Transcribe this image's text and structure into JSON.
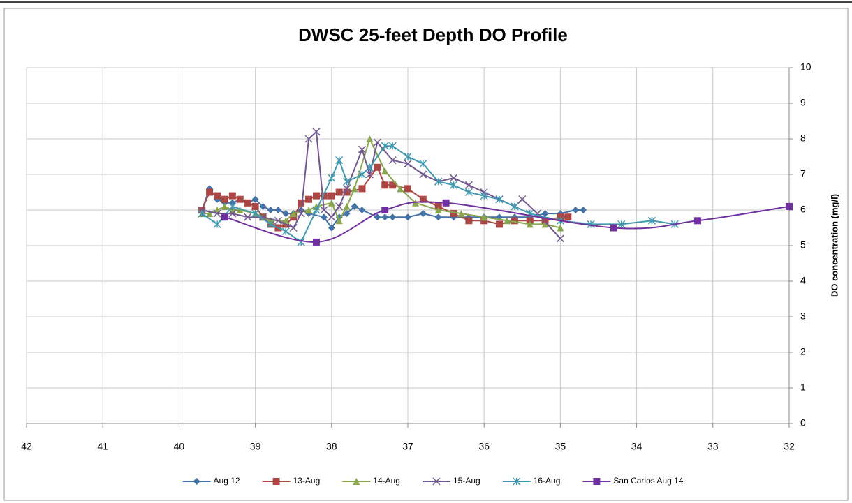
{
  "chart_data": {
    "type": "line",
    "title": "DWSC 25-feet Depth DO Profile",
    "y_label": "DO concentration (mg/l)",
    "xlim": [
      42,
      32
    ],
    "xticks": [
      42,
      41,
      40,
      39,
      38,
      37,
      36,
      35,
      34,
      33,
      32
    ],
    "ylim": [
      0,
      10
    ],
    "yticks": [
      0,
      1,
      2,
      3,
      4,
      5,
      6,
      7,
      8,
      9,
      10
    ],
    "grid": true,
    "y_axis_side": "right",
    "legend": "bottom",
    "series": [
      {
        "name": "Aug 12",
        "color": "#4572a7",
        "marker": "diamond",
        "smooth": false,
        "x": [
          39.7,
          39.6,
          39.5,
          39.4,
          39.3,
          39.2,
          39.1,
          39.0,
          38.9,
          38.8,
          38.7,
          38.6,
          38.5,
          38.4,
          38.3,
          38.1,
          38.0,
          37.9,
          37.8,
          37.7,
          37.6,
          37.4,
          37.3,
          37.2,
          37.0,
          36.8,
          36.6,
          36.4,
          36.2,
          36.0,
          35.8,
          35.6,
          35.4,
          35.2,
          35.0,
          34.8,
          34.7
        ],
        "values": [
          6.0,
          6.6,
          6.3,
          6.2,
          6.2,
          6.3,
          6.2,
          6.3,
          6.1,
          6.0,
          6.0,
          5.9,
          5.9,
          6.0,
          5.9,
          5.8,
          5.5,
          5.8,
          5.9,
          6.1,
          6.0,
          5.8,
          5.8,
          5.8,
          5.8,
          5.9,
          5.8,
          5.8,
          5.8,
          5.8,
          5.8,
          5.8,
          5.8,
          5.9,
          5.9,
          6.0,
          6.0
        ]
      },
      {
        "name": "13-Aug",
        "color": "#aa4643",
        "marker": "square",
        "smooth": false,
        "x": [
          39.7,
          39.6,
          39.5,
          39.4,
          39.3,
          39.2,
          39.1,
          39.0,
          38.9,
          38.8,
          38.7,
          38.6,
          38.5,
          38.4,
          38.3,
          38.2,
          38.1,
          38.0,
          37.9,
          37.8,
          37.6,
          37.4,
          37.3,
          37.2,
          37.0,
          36.8,
          36.6,
          36.4,
          36.2,
          36.0,
          35.8,
          35.6,
          35.4,
          35.2,
          35.0,
          34.9
        ],
        "values": [
          6.0,
          6.5,
          6.4,
          6.3,
          6.4,
          6.3,
          6.2,
          6.1,
          5.8,
          5.6,
          5.5,
          5.6,
          5.8,
          6.2,
          6.3,
          6.4,
          6.4,
          6.4,
          6.5,
          6.5,
          6.6,
          7.2,
          6.7,
          6.7,
          6.6,
          6.3,
          6.1,
          5.9,
          5.7,
          5.7,
          5.6,
          5.7,
          5.7,
          5.7,
          5.8,
          5.8
        ]
      },
      {
        "name": "14-Aug",
        "color": "#89a54e",
        "marker": "triangle",
        "smooth": false,
        "x": [
          39.7,
          39.6,
          39.5,
          39.4,
          39.3,
          39.2,
          39.0,
          38.9,
          38.8,
          38.6,
          38.5,
          38.3,
          38.2,
          38.0,
          37.9,
          37.8,
          37.7,
          37.5,
          37.3,
          37.1,
          36.9,
          36.6,
          36.3,
          36.0,
          35.7,
          35.4,
          35.2,
          35.0
        ],
        "values": [
          5.9,
          5.9,
          6.0,
          6.1,
          6.0,
          6.0,
          5.9,
          5.8,
          5.7,
          5.7,
          5.9,
          6.0,
          6.1,
          6.2,
          5.7,
          6.1,
          6.6,
          8.0,
          7.1,
          6.6,
          6.2,
          6.0,
          5.9,
          5.8,
          5.7,
          5.6,
          5.6,
          5.5
        ]
      },
      {
        "name": "15-Aug",
        "color": "#71588f",
        "marker": "x",
        "smooth": false,
        "x": [
          39.7,
          39.5,
          39.3,
          39.1,
          38.9,
          38.7,
          38.5,
          38.4,
          38.3,
          38.2,
          38.1,
          38.0,
          37.9,
          37.8,
          37.6,
          37.5,
          37.4,
          37.2,
          37.0,
          36.8,
          36.6,
          36.4,
          36.2,
          36.0,
          35.8,
          35.6,
          35.5,
          35.3,
          35.0
        ],
        "values": [
          6.0,
          5.9,
          5.9,
          5.8,
          5.8,
          5.7,
          5.5,
          5.9,
          8.0,
          8.2,
          6.0,
          5.8,
          6.1,
          6.6,
          7.7,
          7.0,
          7.9,
          7.4,
          7.3,
          7.0,
          6.8,
          6.9,
          6.7,
          6.5,
          6.3,
          6.1,
          6.3,
          5.9,
          5.2
        ]
      },
      {
        "name": "16-Aug",
        "color": "#4198af",
        "marker": "star",
        "smooth": false,
        "x": [
          39.7,
          39.5,
          39.3,
          39.0,
          38.8,
          38.6,
          38.4,
          38.2,
          38.0,
          37.9,
          37.8,
          37.6,
          37.5,
          37.3,
          37.2,
          37.0,
          36.8,
          36.6,
          36.4,
          36.2,
          36.0,
          35.8,
          35.6,
          35.4,
          35.0,
          34.6,
          34.2,
          33.8,
          33.5
        ],
        "values": [
          5.9,
          5.6,
          6.1,
          5.9,
          5.6,
          5.4,
          5.1,
          6.0,
          6.9,
          7.4,
          6.8,
          7.0,
          7.2,
          7.8,
          7.8,
          7.5,
          7.3,
          6.8,
          6.7,
          6.5,
          6.4,
          6.3,
          6.1,
          5.9,
          5.7,
          5.6,
          5.6,
          5.7,
          5.6
        ]
      },
      {
        "name": "San Carlos  Aug 14",
        "color": "#7030a0",
        "marker": "square",
        "smooth": true,
        "x": [
          39.4,
          38.2,
          37.3,
          36.5,
          34.3,
          33.2,
          32.0
        ],
        "values": [
          5.8,
          5.1,
          6.0,
          6.2,
          5.5,
          5.7,
          6.1
        ]
      }
    ]
  }
}
